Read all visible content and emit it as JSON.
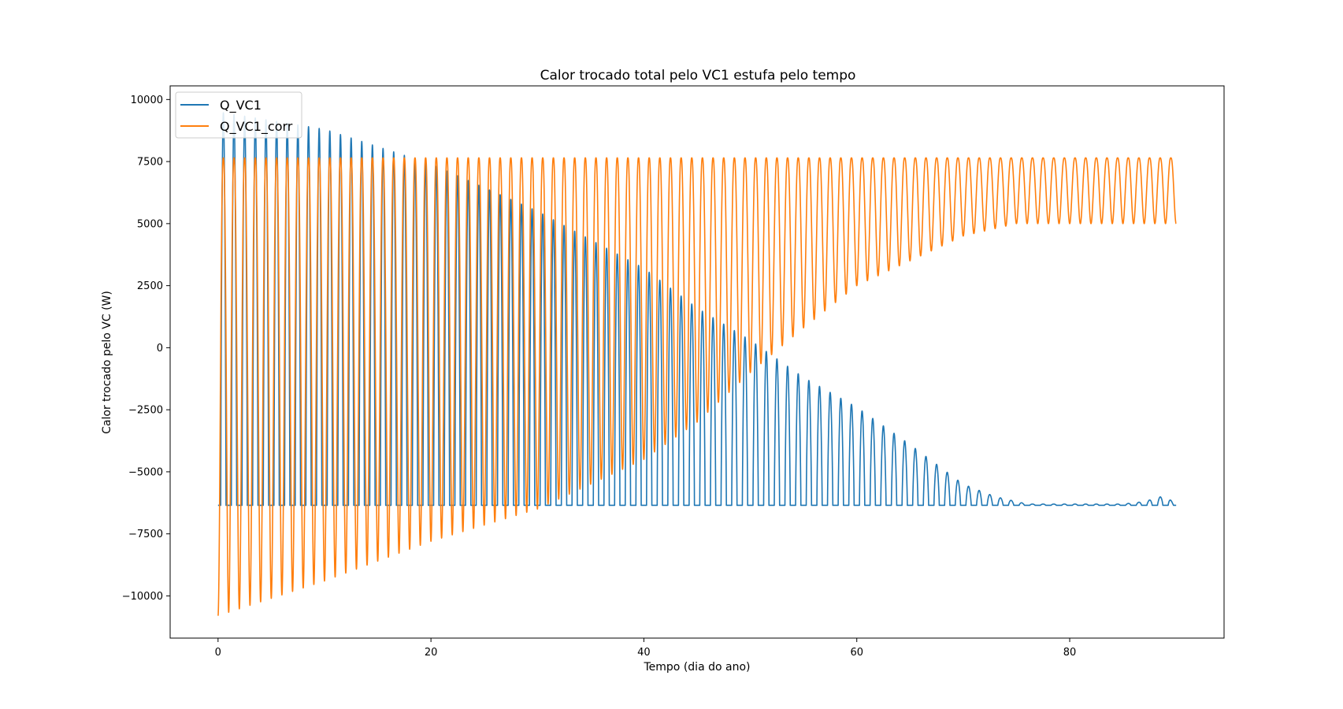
{
  "chart_data": {
    "type": "line",
    "title": "Calor trocado total pelo VC1 estufa pelo tempo",
    "xlabel": "Tempo (dia do ano)",
    "ylabel": "Calor trocado pelo VC (W)",
    "xlim": [
      -4.5,
      94.5
    ],
    "ylim": [
      -11700,
      10550
    ],
    "xticks": [
      0,
      20,
      40,
      60,
      80
    ],
    "yticks": [
      -10000,
      -7500,
      -5000,
      -2500,
      0,
      2500,
      5000,
      7500,
      10000
    ],
    "legend_position": "upper-left",
    "series": [
      {
        "name": "Q_VC1",
        "color": "#1f77b4",
        "description": "daily oscillation (90 days), baseline -6350 W, daily peaks decaying from about 9000 W to the baseline near day 75; flat afterwards with small rebounds after day 85",
        "x_start": 0,
        "x_end": 90,
        "baseline": -6350,
        "peaks": [
          {
            "day": 0,
            "value": 9500
          },
          {
            "day": 10,
            "value": 8800
          },
          {
            "day": 20,
            "value": 7400
          },
          {
            "day": 30,
            "value": 5500
          },
          {
            "day": 40,
            "value": 3200
          },
          {
            "day": 45,
            "value": 1600
          },
          {
            "day": 50,
            "value": 300
          },
          {
            "day": 55,
            "value": -1200
          },
          {
            "day": 60,
            "value": -2400
          },
          {
            "day": 65,
            "value": -3900
          },
          {
            "day": 70,
            "value": -5500
          },
          {
            "day": 73,
            "value": -6000
          },
          {
            "day": 76,
            "value": -6300
          },
          {
            "day": 85,
            "value": -6300
          },
          {
            "day": 87,
            "value": -6200
          },
          {
            "day": 89,
            "value": -5950
          },
          {
            "day": 90,
            "value": -6350
          }
        ]
      },
      {
        "name": "Q_VC1_corr",
        "color": "#ff7f0e",
        "description": "daily oscillation (90 days) between about 7650 W (max) and a minimum rising from about -10800 W to about 5000 W",
        "x_start": 0,
        "x_end": 90,
        "maximum": 7650,
        "minima": [
          {
            "day": 0,
            "value": -10800
          },
          {
            "day": 10,
            "value": -9400
          },
          {
            "day": 20,
            "value": -7800
          },
          {
            "day": 30,
            "value": -6500
          },
          {
            "day": 40,
            "value": -4500
          },
          {
            "day": 45,
            "value": -3000
          },
          {
            "day": 50,
            "value": -1000
          },
          {
            "day": 55,
            "value": 800
          },
          {
            "day": 60,
            "value": 2500
          },
          {
            "day": 65,
            "value": 3500
          },
          {
            "day": 70,
            "value": 4500
          },
          {
            "day": 75,
            "value": 5000
          },
          {
            "day": 90,
            "value": 5000
          }
        ]
      }
    ]
  }
}
